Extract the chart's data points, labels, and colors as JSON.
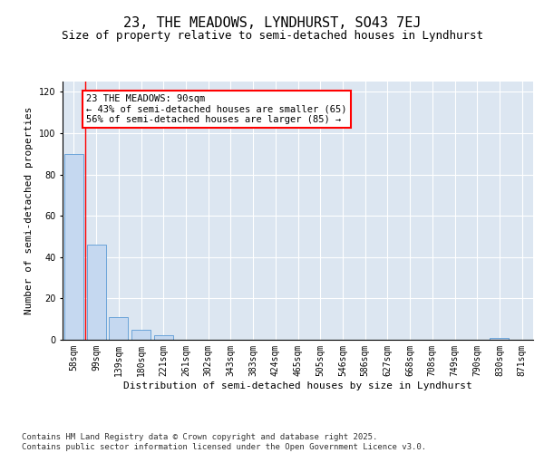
{
  "title": "23, THE MEADOWS, LYNDHURST, SO43 7EJ",
  "subtitle": "Size of property relative to semi-detached houses in Lyndhurst",
  "xlabel": "Distribution of semi-detached houses by size in Lyndhurst",
  "ylabel": "Number of semi-detached properties",
  "categories": [
    "58sqm",
    "99sqm",
    "139sqm",
    "180sqm",
    "221sqm",
    "261sqm",
    "302sqm",
    "343sqm",
    "383sqm",
    "424sqm",
    "465sqm",
    "505sqm",
    "546sqm",
    "586sqm",
    "627sqm",
    "668sqm",
    "708sqm",
    "749sqm",
    "790sqm",
    "830sqm",
    "871sqm"
  ],
  "values": [
    90,
    46,
    11,
    5,
    2,
    0,
    0,
    0,
    0,
    0,
    0,
    0,
    0,
    0,
    0,
    0,
    0,
    0,
    0,
    1,
    0
  ],
  "bar_color": "#c5d8f0",
  "bar_edge_color": "#5b9bd5",
  "red_line_x": 0.5,
  "annotation_text": "23 THE MEADOWS: 90sqm\n← 43% of semi-detached houses are smaller (65)\n56% of semi-detached houses are larger (85) →",
  "annotation_box_color": "#ffffff",
  "annotation_box_edge_color": "#ff0000",
  "ylim": [
    0,
    125
  ],
  "yticks": [
    0,
    20,
    40,
    60,
    80,
    100,
    120
  ],
  "background_color": "#dce6f1",
  "footer_text": "Contains HM Land Registry data © Crown copyright and database right 2025.\nContains public sector information licensed under the Open Government Licence v3.0.",
  "title_fontsize": 11,
  "subtitle_fontsize": 9,
  "axis_label_fontsize": 8,
  "tick_fontsize": 7,
  "annotation_fontsize": 7.5,
  "footer_fontsize": 6.5
}
